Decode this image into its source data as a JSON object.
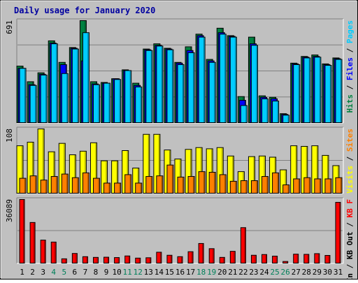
{
  "chart_data": {
    "type": "bar",
    "title": "Daily usage for January 2020",
    "categories": [
      "1",
      "2",
      "3",
      "4",
      "5",
      "6",
      "7",
      "8",
      "9",
      "10",
      "11",
      "12",
      "13",
      "14",
      "15",
      "16",
      "17",
      "18",
      "19",
      "20",
      "21",
      "22",
      "23",
      "24",
      "25",
      "26",
      "27",
      "28",
      "29",
      "30",
      "31"
    ],
    "weekend_days": [
      "4",
      "5",
      "11",
      "12",
      "18",
      "19",
      "25",
      "26"
    ],
    "panels": [
      {
        "id": "hits-files-pages",
        "max_label": "691",
        "ylim": [
          0,
          691
        ],
        "legend": [
          "Hits",
          "Files",
          "Pages"
        ],
        "series": [
          {
            "name": "Hits",
            "color": "#008040",
            "values": [
              385,
              280,
              340,
              555,
              410,
              510,
              691,
              280,
              275,
              300,
              360,
              270,
              500,
              535,
              505,
              410,
              515,
              600,
              430,
              640,
              590,
              180,
              580,
              185,
              175,
              65,
              405,
              450,
              460,
              400,
              440
            ]
          },
          {
            "name": "Files",
            "color": "#0000ff",
            "values": [
              370,
              260,
              330,
              540,
              395,
              505,
              420,
              265,
              270,
              300,
              355,
              255,
              495,
              525,
              500,
              405,
              490,
              590,
              420,
              610,
              585,
              155,
              535,
              175,
              165,
              60,
              400,
              445,
              450,
              395,
              435
            ]
          },
          {
            "name": "Pages",
            "color": "#00ccff",
            "values": [
              370,
              255,
              325,
              535,
              335,
              500,
              610,
              260,
              270,
              295,
              355,
              245,
              490,
              520,
              495,
              395,
              475,
              580,
              410,
              600,
              580,
              120,
              525,
              165,
              150,
              55,
              395,
              440,
              445,
              390,
              430
            ]
          }
        ]
      },
      {
        "id": "visits-sites",
        "max_label": "108",
        "ylim": [
          0,
          108
        ],
        "legend": [
          "Visits",
          "Sites"
        ],
        "series": [
          {
            "name": "Visits",
            "color": "#ffff00",
            "values": [
              80,
              86,
              108,
              70,
              84,
              65,
              71,
              85,
              55,
              55,
              72,
              43,
              99,
              99,
              73,
              58,
              74,
              77,
              75,
              77,
              63,
              37,
              62,
              63,
              61,
              40,
              80,
              79,
              80,
              64,
              47
            ]
          },
          {
            "name": "Sites",
            "color": "#ff8000",
            "values": [
              26,
              30,
              23,
              29,
              33,
              27,
              35,
              26,
              18,
              18,
              32,
              18,
              29,
              30,
              48,
              28,
              29,
              37,
              36,
              32,
              21,
              22,
              22,
              29,
              35,
              15,
              25,
              27,
              25,
              25,
              27
            ]
          }
        ]
      },
      {
        "id": "kb",
        "max_label": "36089",
        "ylim": [
          0,
          36089
        ],
        "legend": [
          "KB In",
          "KB Out",
          "KB F"
        ],
        "series": [
          {
            "name": "KB F",
            "color": "#ff0000",
            "values": [
              36089,
              23200,
              13300,
              12200,
              2800,
              5800,
              4000,
              3600,
              3700,
              3500,
              4400,
              3200,
              3400,
              6500,
              4800,
              4000,
              6800,
              11400,
              8500,
              3600,
              7000,
              20300,
              4800,
              5200,
              4300,
              1300,
              5400,
              5300,
              5700,
              4700,
              34500
            ]
          }
        ]
      }
    ]
  }
}
